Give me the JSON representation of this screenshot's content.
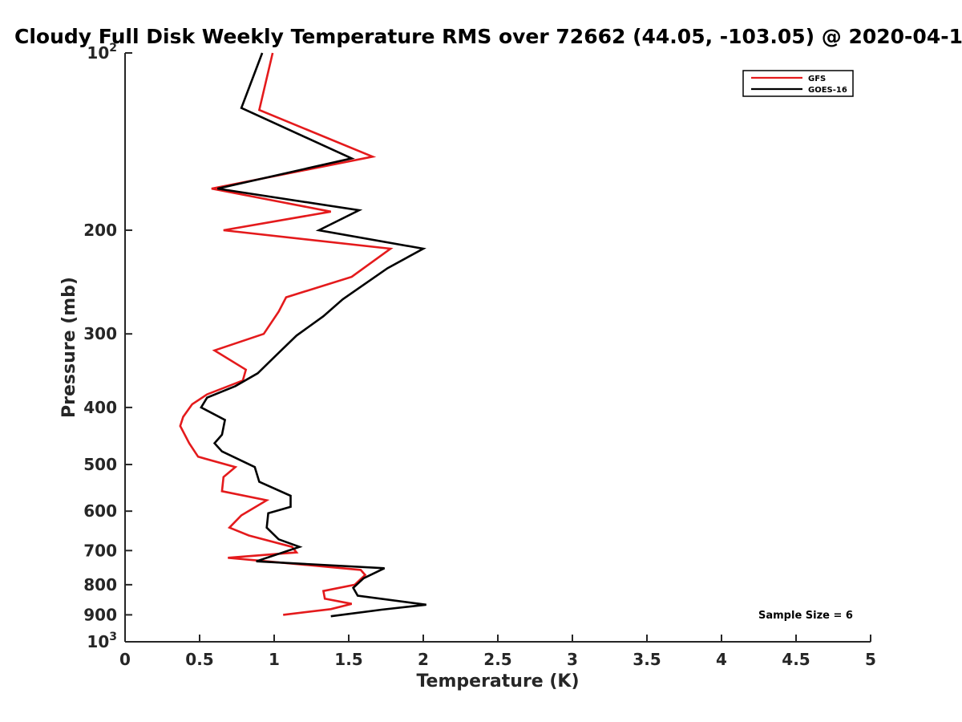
{
  "chart_data": {
    "type": "line",
    "title": "Cloudy Full Disk Weekly Temperature RMS over 72662 (44.05, -103.05) @ 2020-04-1",
    "xlabel": "Temperature (K)",
    "ylabel": "Pressure (mb)",
    "xlim": [
      0,
      5
    ],
    "ylim": [
      1000,
      100
    ],
    "yscale": "log",
    "y_reversed": true,
    "grid": false,
    "legend_placement": "top-right",
    "x_ticks": [
      {
        "value": 0,
        "label": "0"
      },
      {
        "value": 0.5,
        "label": "0.5"
      },
      {
        "value": 1,
        "label": "1"
      },
      {
        "value": 1.5,
        "label": "1.5"
      },
      {
        "value": 2,
        "label": "2"
      },
      {
        "value": 2.5,
        "label": "2.5"
      },
      {
        "value": 3,
        "label": "3"
      },
      {
        "value": 3.5,
        "label": "3.5"
      },
      {
        "value": 4,
        "label": "4"
      },
      {
        "value": 4.5,
        "label": "4.5"
      },
      {
        "value": 5,
        "label": "5"
      }
    ],
    "y_ticks": [
      {
        "value": 100,
        "base": "10",
        "exp": "2"
      },
      {
        "value": 200,
        "base": "200",
        "exp": ""
      },
      {
        "value": 300,
        "base": "300",
        "exp": ""
      },
      {
        "value": 400,
        "base": "400",
        "exp": ""
      },
      {
        "value": 500,
        "base": "500",
        "exp": ""
      },
      {
        "value": 600,
        "base": "600",
        "exp": ""
      },
      {
        "value": 700,
        "base": "700",
        "exp": ""
      },
      {
        "value": 800,
        "base": "800",
        "exp": ""
      },
      {
        "value": 900,
        "base": "900",
        "exp": ""
      },
      {
        "value": 1000,
        "base": "10",
        "exp": "3"
      }
    ],
    "series": [
      {
        "name": "GFS",
        "color": "#e41a1c",
        "points": [
          {
            "t": 0.99,
            "p": 100
          },
          {
            "t": 0.9,
            "p": 125
          },
          {
            "t": 1.66,
            "p": 150
          },
          {
            "t": 0.58,
            "p": 170
          },
          {
            "t": 1.38,
            "p": 186
          },
          {
            "t": 0.66,
            "p": 200
          },
          {
            "t": 1.78,
            "p": 215
          },
          {
            "t": 1.52,
            "p": 240
          },
          {
            "t": 1.08,
            "p": 260
          },
          {
            "t": 1.03,
            "p": 275
          },
          {
            "t": 0.93,
            "p": 300
          },
          {
            "t": 0.6,
            "p": 320
          },
          {
            "t": 0.81,
            "p": 345
          },
          {
            "t": 0.79,
            "p": 360
          },
          {
            "t": 0.55,
            "p": 380
          },
          {
            "t": 0.45,
            "p": 395
          },
          {
            "t": 0.39,
            "p": 415
          },
          {
            "t": 0.37,
            "p": 430
          },
          {
            "t": 0.43,
            "p": 460
          },
          {
            "t": 0.49,
            "p": 485
          },
          {
            "t": 0.74,
            "p": 505
          },
          {
            "t": 0.66,
            "p": 525
          },
          {
            "t": 0.65,
            "p": 555
          },
          {
            "t": 0.95,
            "p": 575
          },
          {
            "t": 0.78,
            "p": 610
          },
          {
            "t": 0.7,
            "p": 640
          },
          {
            "t": 0.83,
            "p": 660
          },
          {
            "t": 1.12,
            "p": 690
          },
          {
            "t": 1.15,
            "p": 705
          },
          {
            "t": 0.69,
            "p": 720
          },
          {
            "t": 1.58,
            "p": 755
          },
          {
            "t": 1.61,
            "p": 770
          },
          {
            "t": 1.54,
            "p": 800
          },
          {
            "t": 1.33,
            "p": 820
          },
          {
            "t": 1.34,
            "p": 845
          },
          {
            "t": 1.52,
            "p": 862
          },
          {
            "t": 1.38,
            "p": 880
          },
          {
            "t": 1.06,
            "p": 900
          }
        ]
      },
      {
        "name": "GOES-16",
        "color": "#000000",
        "points": [
          {
            "t": 0.92,
            "p": 100
          },
          {
            "t": 0.78,
            "p": 124
          },
          {
            "t": 1.52,
            "p": 151
          },
          {
            "t": 0.62,
            "p": 170
          },
          {
            "t": 1.57,
            "p": 185
          },
          {
            "t": 1.3,
            "p": 200
          },
          {
            "t": 2.0,
            "p": 215
          },
          {
            "t": 1.76,
            "p": 232
          },
          {
            "t": 1.46,
            "p": 262
          },
          {
            "t": 1.33,
            "p": 280
          },
          {
            "t": 1.15,
            "p": 302
          },
          {
            "t": 1.02,
            "p": 325
          },
          {
            "t": 0.89,
            "p": 350
          },
          {
            "t": 0.74,
            "p": 368
          },
          {
            "t": 0.55,
            "p": 385
          },
          {
            "t": 0.51,
            "p": 400
          },
          {
            "t": 0.67,
            "p": 420
          },
          {
            "t": 0.65,
            "p": 445
          },
          {
            "t": 0.6,
            "p": 460
          },
          {
            "t": 0.65,
            "p": 475
          },
          {
            "t": 0.87,
            "p": 505
          },
          {
            "t": 0.9,
            "p": 535
          },
          {
            "t": 1.11,
            "p": 565
          },
          {
            "t": 1.11,
            "p": 590
          },
          {
            "t": 0.96,
            "p": 605
          },
          {
            "t": 0.95,
            "p": 640
          },
          {
            "t": 1.03,
            "p": 670
          },
          {
            "t": 1.17,
            "p": 690
          },
          {
            "t": 0.88,
            "p": 730
          },
          {
            "t": 1.74,
            "p": 750
          },
          {
            "t": 1.6,
            "p": 780
          },
          {
            "t": 1.53,
            "p": 810
          },
          {
            "t": 1.56,
            "p": 835
          },
          {
            "t": 2.02,
            "p": 865
          },
          {
            "t": 1.72,
            "p": 882
          },
          {
            "t": 1.38,
            "p": 905
          }
        ]
      }
    ],
    "annotations": [
      "Sample Size = 6"
    ]
  }
}
